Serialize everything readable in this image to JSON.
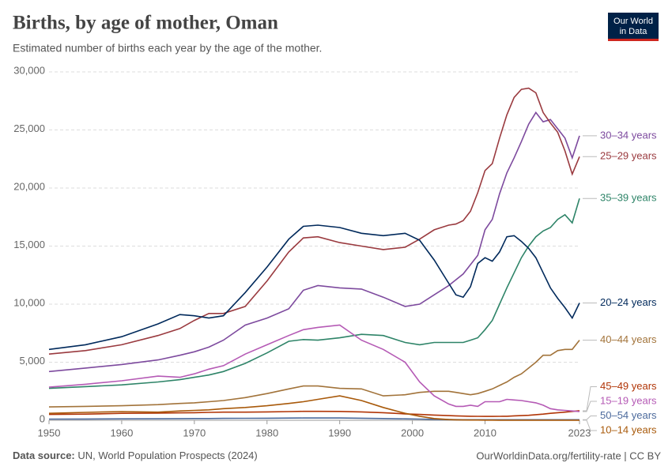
{
  "chart_data": {
    "type": "line",
    "title": "Births, by age of mother, Oman",
    "subtitle": "Estimated number of births each year by the age of the mother.",
    "logo": [
      "Our World",
      "in Data"
    ],
    "source_label": "Data source:",
    "source": "UN, World Population Prospects (2024)",
    "footer_right": "OurWorldinData.org/fertility-rate | CC BY",
    "x": [
      1950,
      1955,
      1960,
      1965,
      1968,
      1970,
      1972,
      1974,
      1977,
      1980,
      1983,
      1985,
      1987,
      1990,
      1993,
      1996,
      1999,
      2001,
      2003,
      2005,
      2006,
      2007,
      2008,
      2009,
      2010,
      2011,
      2012,
      2013,
      2014,
      2015,
      2016,
      2017,
      2018,
      2019,
      2020,
      2021,
      2022,
      2023
    ],
    "xlim": [
      1950,
      2023
    ],
    "xticks": [
      1950,
      1960,
      1970,
      1980,
      1990,
      2000,
      2010,
      2023
    ],
    "ylim": [
      0,
      30000
    ],
    "yticks": [
      0,
      {
        "value": 5000,
        "label": "5,000"
      },
      {
        "value": 10000,
        "label": "10,000"
      },
      {
        "value": 15000,
        "label": "15,000"
      },
      {
        "value": 20000,
        "label": "20,000"
      },
      {
        "value": 25000,
        "label": "25,000"
      },
      {
        "value": 30000,
        "label": "30,000"
      }
    ],
    "grid": true,
    "series": [
      {
        "name": "30–34 years",
        "color": "#7d4a9e",
        "values": [
          4200,
          4500,
          4800,
          5200,
          5600,
          5900,
          6300,
          6900,
          8200,
          8800,
          9600,
          11200,
          11600,
          11400,
          11300,
          10600,
          9800,
          10000,
          10800,
          11600,
          12100,
          12600,
          13400,
          14200,
          16400,
          17300,
          19500,
          21300,
          22600,
          24000,
          25500,
          26500,
          25700,
          25900,
          25100,
          24300,
          22600,
          24500
        ]
      },
      {
        "name": "25–29 years",
        "color": "#9a3a3f",
        "values": [
          5700,
          6000,
          6500,
          7300,
          7900,
          8600,
          9200,
          9200,
          9800,
          12000,
          14500,
          15700,
          15800,
          15300,
          15000,
          14700,
          14900,
          15600,
          16400,
          16800,
          16900,
          17200,
          18000,
          19600,
          21500,
          22100,
          24300,
          26300,
          27800,
          28500,
          28600,
          28200,
          26500,
          25600,
          24800,
          23200,
          21200,
          22700
        ]
      },
      {
        "name": "35–39 years",
        "color": "#2e8468",
        "values": [
          2750,
          2900,
          3050,
          3300,
          3500,
          3700,
          3900,
          4200,
          4900,
          5800,
          6800,
          6950,
          6900,
          7100,
          7400,
          7300,
          6700,
          6500,
          6700,
          6700,
          6700,
          6700,
          6900,
          7100,
          7800,
          8600,
          10000,
          11400,
          12700,
          14000,
          15000,
          15800,
          16300,
          16600,
          17300,
          17700,
          17000,
          19100
        ]
      },
      {
        "name": "20–24 years",
        "color": "#00295b",
        "values": [
          6100,
          6500,
          7200,
          8300,
          9100,
          9000,
          8800,
          9000,
          11000,
          13200,
          15600,
          16700,
          16800,
          16600,
          16100,
          15900,
          16100,
          15500,
          13800,
          11800,
          10800,
          10600,
          11500,
          13500,
          14000,
          13700,
          14500,
          15800,
          15900,
          15400,
          14800,
          14000,
          12700,
          11400,
          10500,
          9700,
          8800,
          10100
        ]
      },
      {
        "name": "40–44 years",
        "color": "#a2733a",
        "values": [
          1150,
          1200,
          1250,
          1350,
          1450,
          1500,
          1600,
          1700,
          1950,
          2300,
          2700,
          2950,
          2950,
          2750,
          2700,
          2100,
          2200,
          2400,
          2500,
          2500,
          2400,
          2300,
          2200,
          2300,
          2500,
          2700,
          3000,
          3300,
          3700,
          4000,
          4500,
          5000,
          5600,
          5600,
          6000,
          6100,
          6100,
          6900
        ]
      },
      {
        "name": "45–49 years",
        "color": "#b13507",
        "values": [
          500,
          530,
          600,
          620,
          640,
          650,
          680,
          700,
          700,
          720,
          750,
          770,
          770,
          760,
          720,
          650,
          550,
          500,
          450,
          400,
          380,
          360,
          350,
          340,
          330,
          330,
          340,
          350,
          380,
          400,
          430,
          480,
          530,
          600,
          650,
          700,
          760,
          820
        ]
      },
      {
        "name": "15–19 years",
        "color": "#b55ab5",
        "values": [
          2850,
          3100,
          3400,
          3800,
          3700,
          4000,
          4400,
          4700,
          5700,
          6500,
          7300,
          7800,
          8000,
          8200,
          6900,
          6100,
          5000,
          3300,
          2100,
          1400,
          1200,
          1200,
          1300,
          1200,
          1600,
          1600,
          1600,
          1800,
          1750,
          1700,
          1600,
          1500,
          1300,
          1000,
          900,
          850,
          800,
          750
        ]
      },
      {
        "name": "50–54 years",
        "color": "#4c6a9c",
        "values": [
          100,
          110,
          120,
          130,
          140,
          150,
          150,
          160,
          170,
          180,
          190,
          200,
          200,
          200,
          180,
          150,
          120,
          100,
          80,
          60,
          55,
          50,
          50,
          50,
          50,
          50,
          50,
          50,
          50,
          50,
          50,
          50,
          50,
          50,
          50,
          50,
          50,
          50
        ]
      },
      {
        "name": "10–14 years",
        "color": "#a8590a",
        "values": [
          600,
          680,
          750,
          700,
          800,
          850,
          900,
          1000,
          1100,
          1250,
          1450,
          1600,
          1800,
          2100,
          1700,
          1100,
          600,
          350,
          150,
          60,
          40,
          30,
          20,
          20,
          15,
          15,
          10,
          10,
          10,
          10,
          10,
          10,
          10,
          10,
          10,
          10,
          10,
          10
        ]
      }
    ]
  }
}
